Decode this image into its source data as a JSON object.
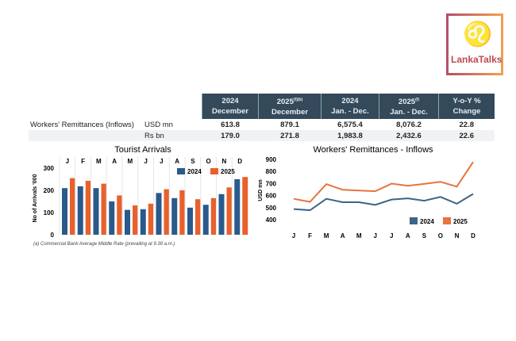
{
  "logo": {
    "text": "LankaTalks",
    "icon": "lion-icon"
  },
  "table": {
    "headers": [
      {
        "l1": "2024",
        "l2": "December",
        "sup": ""
      },
      {
        "l1": "2025",
        "l2": "December",
        "sup": "(f)(b)"
      },
      {
        "l1": "2024",
        "l2": "Jan. - Dec.",
        "sup": ""
      },
      {
        "l1": "2025",
        "l2": "Jan. - Dec.",
        "sup": "(f)"
      },
      {
        "l1": "Y-o-Y %",
        "l2": "Change",
        "sup": ""
      }
    ],
    "rows": [
      {
        "label": "Workers' Remittances (Inflows)",
        "unit": "USD mn",
        "values": [
          "613.8",
          "879.1",
          "6,575.4",
          "8,076.2",
          "22.8"
        ]
      },
      {
        "label": "",
        "unit": "Rs bn",
        "values": [
          "179.0",
          "271.8",
          "1,983.8",
          "2,432.6",
          "22.6"
        ]
      }
    ]
  },
  "chart_data": [
    {
      "type": "bar",
      "title": "Tourist Arrivals",
      "ylabel": "No of Arrivals '000",
      "categories": [
        "J",
        "F",
        "M",
        "A",
        "M",
        "J",
        "J",
        "A",
        "S",
        "O",
        "N",
        "D"
      ],
      "yticks": [
        "0",
        "100",
        "200",
        "300"
      ],
      "ylim": [
        0,
        350
      ],
      "legend": "top-right",
      "series": [
        {
          "name": "2024",
          "color": "#2a5a8c",
          "values": [
            210,
            218,
            210,
            150,
            112,
            115,
            188,
            165,
            122,
            135,
            183,
            250
          ]
        },
        {
          "name": "2025",
          "color": "#e8612c",
          "values": [
            255,
            243,
            230,
            177,
            132,
            140,
            205,
            200,
            160,
            165,
            213,
            260
          ]
        }
      ]
    },
    {
      "type": "line",
      "title": "Workers' Remittances  - Inflows",
      "ylabel": "USD mn",
      "categories": [
        "J",
        "F",
        "M",
        "A",
        "M",
        "J",
        "J",
        "A",
        "S",
        "O",
        "N",
        "D"
      ],
      "yticks": [
        "400",
        "500",
        "600",
        "700",
        "800",
        "900"
      ],
      "ylim": [
        350,
        920
      ],
      "legend": "bottom-right",
      "series": [
        {
          "name": "2024",
          "color": "#3d6487",
          "values": [
            488,
            478,
            573,
            545,
            545,
            523,
            567,
            577,
            557,
            589,
            532,
            614
          ]
        },
        {
          "name": "2025",
          "color": "#e8743c",
          "values": [
            573,
            548,
            695,
            648,
            642,
            636,
            699,
            681,
            697,
            714,
            674,
            879
          ]
        }
      ]
    }
  ],
  "footnote": "(a) Commercial Bank Average Middle Rate (prevailing at 9.30 a.m.)"
}
